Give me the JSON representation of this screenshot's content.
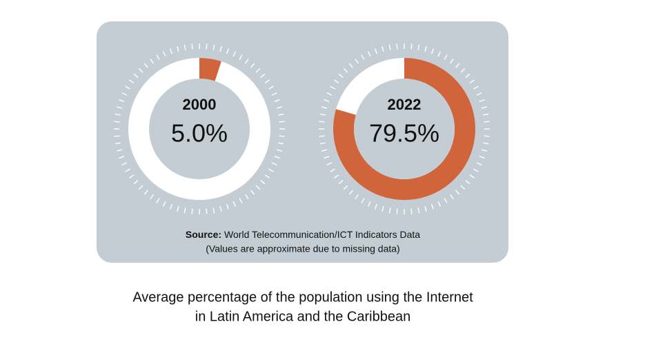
{
  "chart_data": [
    {
      "type": "donut",
      "title": "2000",
      "values": [
        5.0
      ],
      "value_labels": [
        "5.0%"
      ],
      "color": "#d0643a",
      "track_color": "#ffffff"
    },
    {
      "type": "donut",
      "title": "2022",
      "values": [
        79.5
      ],
      "value_labels": [
        "79.5%"
      ],
      "color": "#d0643a",
      "track_color": "#ffffff"
    }
  ],
  "source_label": "Source:",
  "source": "World Telecommunication/ICT Indicators Data",
  "note": "(Values are approximate due to missing data)",
  "caption": [
    "Average percentage of the population using the Internet",
    "in Latin America and the Caribbean"
  ]
}
